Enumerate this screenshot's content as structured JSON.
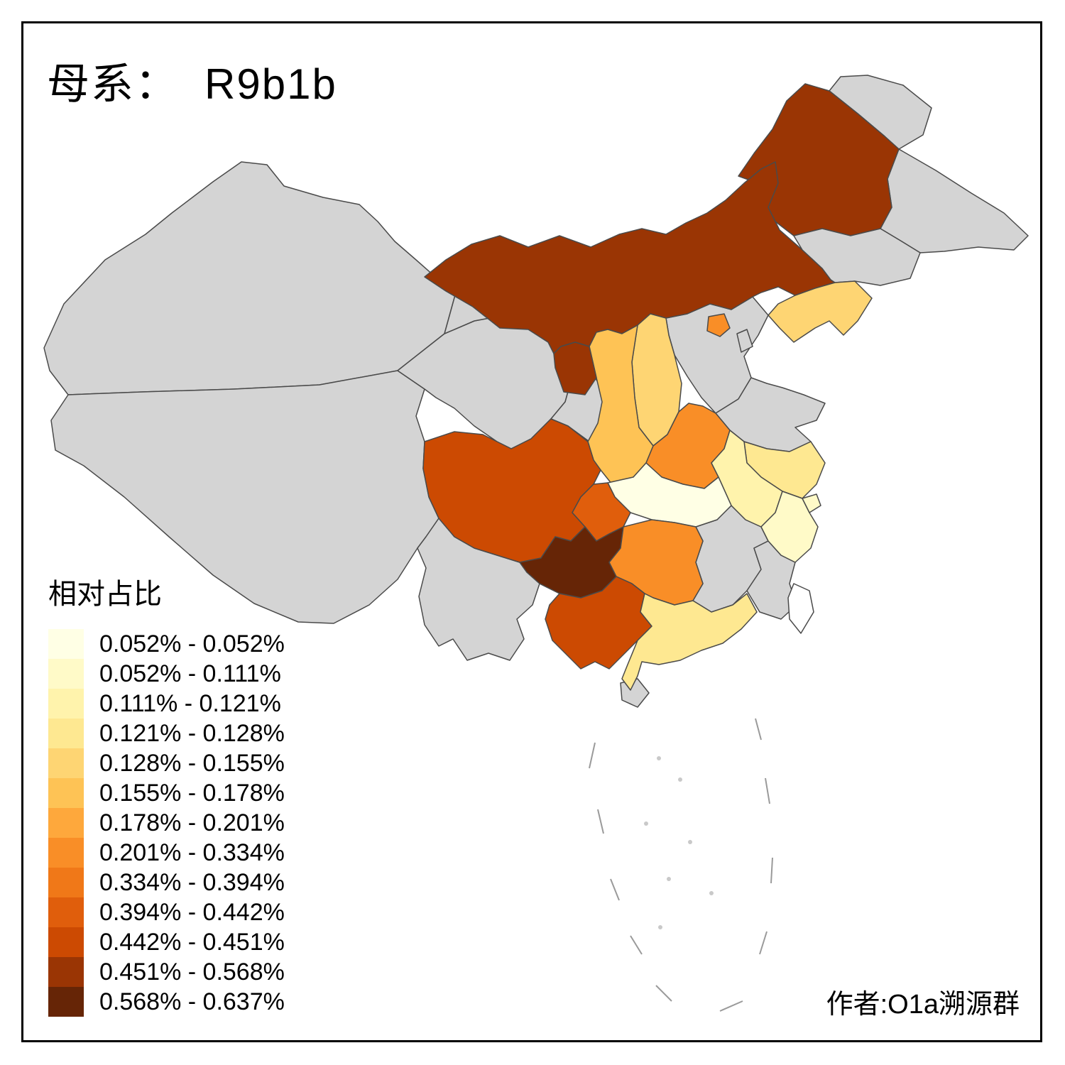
{
  "title": {
    "prefix": "母系：",
    "haplogroup": "R9b1b"
  },
  "legend": {
    "title": "相对占比",
    "items": [
      {
        "label": "0.052% - 0.052%",
        "color": "#FFFFE5"
      },
      {
        "label": "0.052% - 0.111%",
        "color": "#FFFAC8"
      },
      {
        "label": "0.111% - 0.121%",
        "color": "#FFF3AC"
      },
      {
        "label": "0.121% - 0.128%",
        "color": "#FEE891"
      },
      {
        "label": "0.128% - 0.155%",
        "color": "#FED573"
      },
      {
        "label": "0.155% - 0.178%",
        "color": "#FEC355"
      },
      {
        "label": "0.178% - 0.201%",
        "color": "#FEA83C"
      },
      {
        "label": "0.201% - 0.334%",
        "color": "#F98E27"
      },
      {
        "label": "0.334% - 0.394%",
        "color": "#F07818"
      },
      {
        "label": "0.394% - 0.442%",
        "color": "#E05E0C"
      },
      {
        "label": "0.442% - 0.451%",
        "color": "#CC4A02"
      },
      {
        "label": "0.451% - 0.568%",
        "color": "#9A3504"
      },
      {
        "label": "0.568% - 0.637%",
        "color": "#662506"
      }
    ]
  },
  "credit": "作者:O1a溯源群",
  "map": {
    "background": "#FFFFFF",
    "no_data_color": "#D4D4D4",
    "border_color": "#4A4A4A",
    "provinces": {
      "adjacent_ne_1": {
        "color": "#D4D4D4"
      },
      "adjacent_ne_2": {
        "color": "#D4D4D4"
      },
      "xinjiang": {
        "color": "#D4D4D4"
      },
      "xizang": {
        "color": "#D4D4D4"
      },
      "qinghai": {
        "color": "#D4D4D4"
      },
      "gansu": {
        "color": "#D4D4D4"
      },
      "yunnan": {
        "color": "#D4D4D4"
      },
      "hebei": {
        "color": "#D4D4D4"
      },
      "shandong": {
        "color": "#D4D4D4"
      },
      "jiangxi": {
        "color": "#D4D4D4"
      },
      "fujian": {
        "color": "#D4D4D4"
      },
      "hainan": {
        "color": "#D4D4D4"
      },
      "tianjin": {
        "color": "#D4D4D4"
      },
      "jilin": {
        "color": "#D4D4D4"
      },
      "taiwan": {
        "color": "#FFFFFF"
      },
      "heilongjiang": {
        "color": "#9A3504"
      },
      "neimenggu": {
        "color": "#9A3504"
      },
      "ningxia": {
        "color": "#9A3504"
      },
      "liaoning": {
        "color": "#FED573"
      },
      "shanxi": {
        "color": "#FED573"
      },
      "shaanxi": {
        "color": "#FEC355"
      },
      "beijing": {
        "color": "#F98E27"
      },
      "henan": {
        "color": "#F98E27"
      },
      "hunan": {
        "color": "#F98E27"
      },
      "jiangsu": {
        "color": "#FEE891"
      },
      "anhui": {
        "color": "#FFF3AC"
      },
      "hubei": {
        "color": "#FFFFE5"
      },
      "zhejiang": {
        "color": "#FFFAC8"
      },
      "shanghai": {
        "color": "#FFFAC8"
      },
      "sichuan": {
        "color": "#CC4A02"
      },
      "chongqing": {
        "color": "#E05E0C"
      },
      "guizhou": {
        "color": "#662506"
      },
      "guangxi": {
        "color": "#CC4A02"
      },
      "guangdong": {
        "color": "#FEE891"
      }
    }
  }
}
